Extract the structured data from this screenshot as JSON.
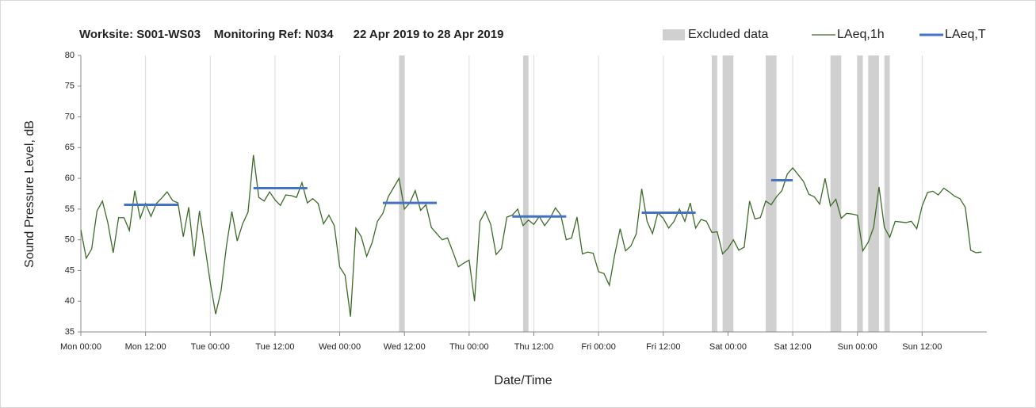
{
  "chart_data": {
    "type": "line",
    "title": "Worksite: S001-WS03    Monitoring Ref: N034      22 Apr 2019 to 28 Apr 2019",
    "xlabel": "Date/Time",
    "ylabel": "Sound Pressure Level, dB",
    "xlim": [
      0,
      168
    ],
    "ylim": [
      35,
      80
    ],
    "yticks": [
      35,
      40,
      45,
      50,
      55,
      60,
      65,
      70,
      75,
      80
    ],
    "xticks": [
      {
        "value": 0,
        "label": "Mon 00:00"
      },
      {
        "value": 12,
        "label": "Mon 12:00"
      },
      {
        "value": 24,
        "label": "Tue 00:00"
      },
      {
        "value": 36,
        "label": "Tue 12:00"
      },
      {
        "value": 48,
        "label": "Wed 00:00"
      },
      {
        "value": 60,
        "label": "Wed 12:00"
      },
      {
        "value": 72,
        "label": "Thu 00:00"
      },
      {
        "value": 84,
        "label": "Thu 12:00"
      },
      {
        "value": 96,
        "label": "Fri 00:00"
      },
      {
        "value": 108,
        "label": "Fri 12:00"
      },
      {
        "value": 120,
        "label": "Sat 00:00"
      },
      {
        "value": 132,
        "label": "Sat 12:00"
      },
      {
        "value": 144,
        "label": "Sun 00:00"
      },
      {
        "value": 156,
        "label": "Sun 12:00"
      }
    ],
    "grid": "x",
    "legend": "top-right",
    "excluded": {
      "name": "Excluded data",
      "color": "#d0d0d0",
      "ranges": [
        [
          59,
          60
        ],
        [
          82,
          83
        ],
        [
          117,
          118
        ],
        [
          119,
          121
        ],
        [
          127,
          129
        ],
        [
          139,
          141
        ],
        [
          144,
          145
        ],
        [
          146,
          148
        ],
        [
          149,
          150
        ]
      ]
    },
    "series": [
      {
        "name": "LAeq,1h",
        "color": "#3d6b27",
        "x": [
          0,
          1,
          2,
          3,
          4,
          5,
          6,
          7,
          8,
          9,
          10,
          11,
          12,
          13,
          14,
          15,
          16,
          17,
          18,
          19,
          20,
          21,
          22,
          23,
          24,
          25,
          26,
          27,
          28,
          29,
          30,
          31,
          32,
          33,
          34,
          35,
          36,
          37,
          38,
          39,
          40,
          41,
          42,
          43,
          44,
          45,
          46,
          47,
          48,
          49,
          50,
          51,
          52,
          53,
          54,
          55,
          56,
          57,
          58,
          59,
          60,
          61,
          62,
          63,
          64,
          65,
          66,
          67,
          68,
          69,
          70,
          71,
          72,
          73,
          74,
          75,
          76,
          77,
          78,
          79,
          80,
          81,
          82,
          83,
          84,
          85,
          86,
          87,
          88,
          89,
          90,
          91,
          92,
          93,
          94,
          95,
          96,
          97,
          98,
          99,
          100,
          101,
          102,
          103,
          104,
          105,
          106,
          107,
          108,
          109,
          110,
          111,
          112,
          113,
          114,
          115,
          116,
          117,
          118,
          119,
          120,
          121,
          122,
          123,
          124,
          125,
          126,
          127,
          128,
          129,
          130,
          131,
          132,
          133,
          134,
          135,
          136,
          137,
          138,
          139,
          140,
          141,
          142,
          143,
          144,
          145,
          146,
          147,
          148,
          149,
          150,
          151,
          152,
          153,
          154,
          155,
          156,
          157,
          158,
          159,
          160,
          161,
          162,
          163,
          164,
          165,
          166,
          167
        ],
        "values": [
          51.6,
          47,
          48.5,
          54.7,
          56.3,
          52.8,
          47.9,
          53.6,
          53.6,
          51.5,
          58,
          53.5,
          55.9,
          53.8,
          55.9,
          56.8,
          57.8,
          56.4,
          56,
          50.5,
          55.3,
          47.3,
          54.7,
          49,
          43,
          37.9,
          41.7,
          49,
          54.6,
          49.8,
          52.6,
          54.5,
          63.8,
          56.9,
          56.3,
          57.8,
          56.5,
          55.6,
          57.3,
          57.2,
          56.9,
          59.3,
          56,
          56.7,
          55.9,
          52.6,
          54,
          52.3,
          45.6,
          44.2,
          37.5,
          51.9,
          50.5,
          47.3,
          49.5,
          53,
          54.3,
          57,
          58.5,
          60,
          55,
          56,
          58,
          54.8,
          55.7,
          52,
          51,
          50,
          50.3,
          48,
          45.6,
          46.2,
          46.7,
          40,
          53,
          54.6,
          52.5,
          47.6,
          48.6,
          53.7,
          54,
          55,
          52.3,
          53.2,
          52.5,
          53.8,
          52.3,
          53.5,
          55.2,
          54,
          50,
          50.3,
          53.7,
          47.7,
          48,
          47.8,
          44.8,
          44.5,
          42.6,
          47.6,
          51.8,
          48.2,
          49,
          51,
          58.3,
          53,
          51,
          54.4,
          53.5,
          51.9,
          53,
          55,
          53,
          56,
          51.9,
          53.3,
          53,
          51.2,
          51.3,
          47.7,
          48.6,
          50,
          48.3,
          48.8,
          56.3,
          53.4,
          53.6,
          56.3,
          55.7,
          57,
          58,
          60.7,
          61.7,
          60.6,
          59.5,
          57.4,
          57,
          55.8,
          60,
          55.5,
          56.6,
          53.5,
          54.3,
          54.2,
          54,
          48.2,
          49.6,
          52,
          58.6,
          52,
          50.4,
          53,
          52.9,
          52.8,
          53,
          51.8,
          55.5,
          57.7,
          57.9,
          57.3,
          58.4,
          57.8,
          57.1,
          56.7,
          55.3,
          48.3,
          47.9,
          48
        ]
      },
      {
        "name": "LAeq,T",
        "color": "#4472c4",
        "periods": [
          [
            8,
            18
          ],
          [
            32,
            42
          ],
          [
            56,
            66
          ],
          [
            80,
            90
          ],
          [
            104,
            114
          ],
          [
            128,
            132
          ]
        ],
        "values": [
          55.7,
          58.4,
          56,
          53.8,
          54.4,
          59.7
        ]
      }
    ]
  }
}
